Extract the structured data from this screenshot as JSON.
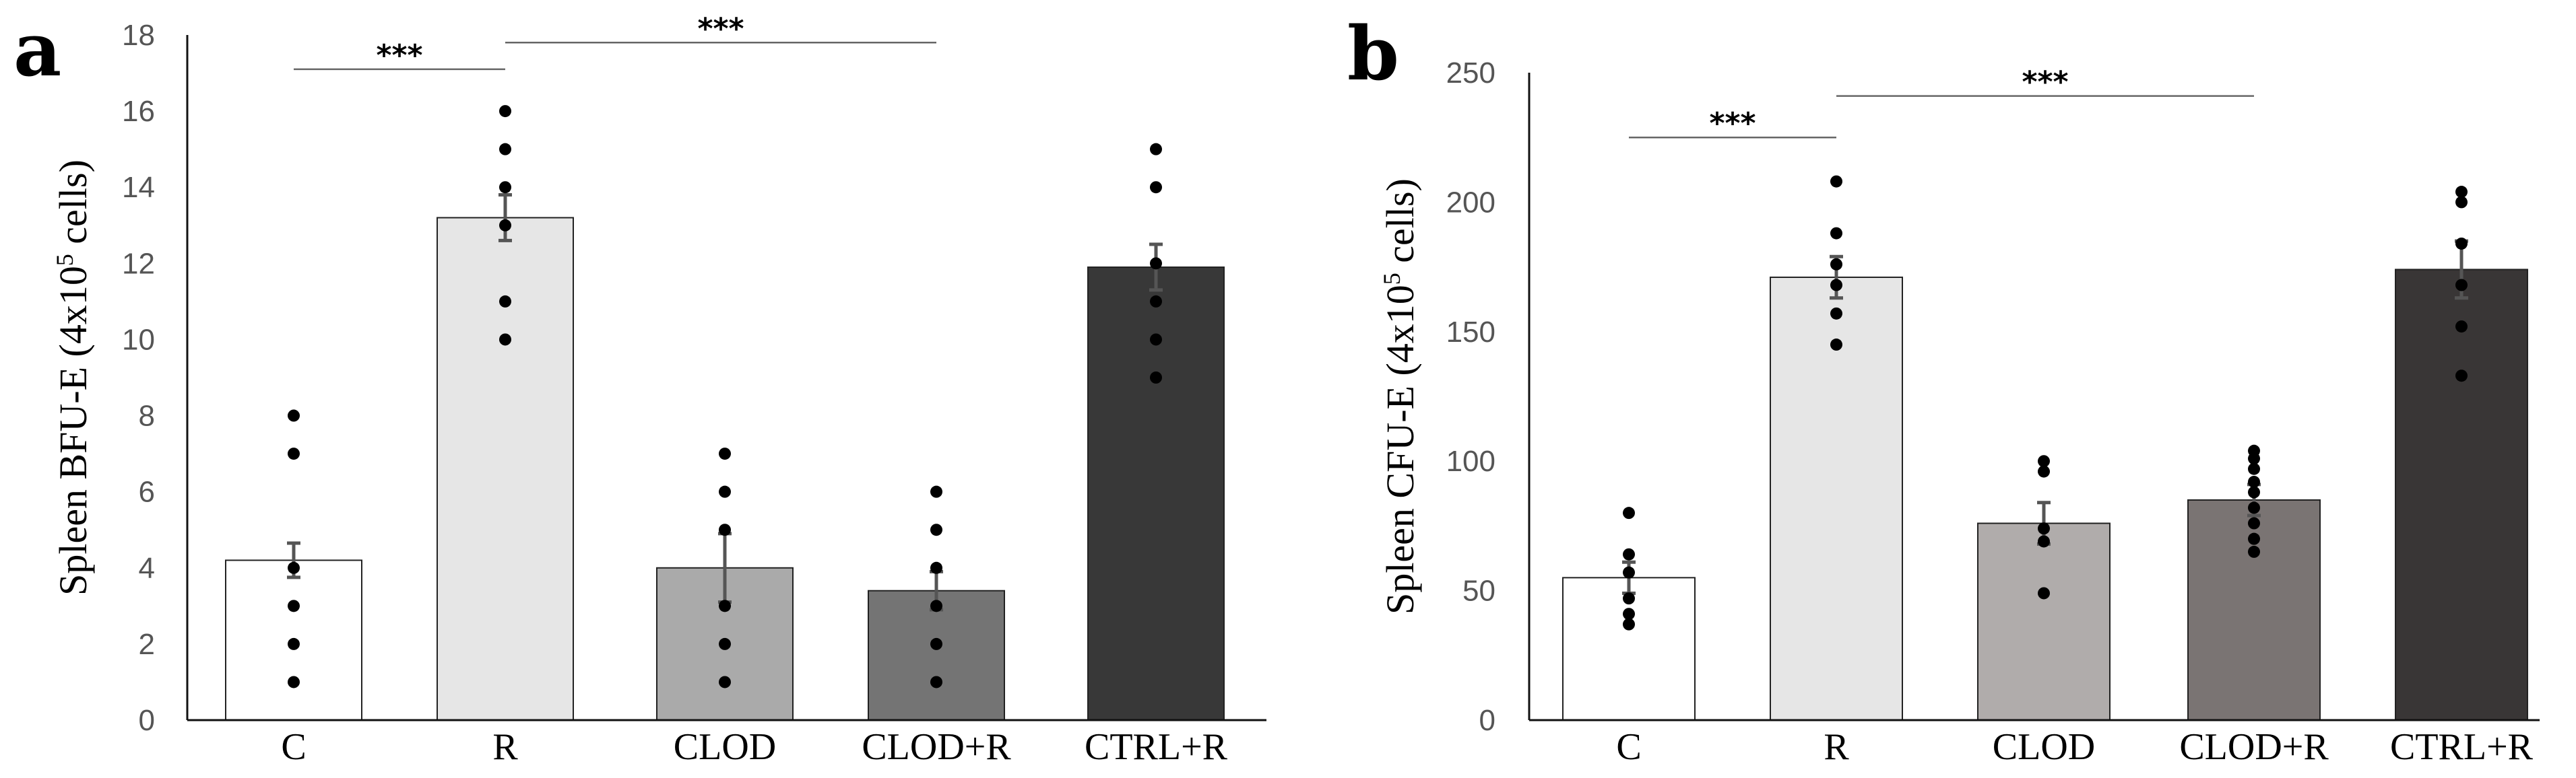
{
  "panels": [
    {
      "letter": "a"
    },
    {
      "letter": "b"
    }
  ],
  "chart_data": [
    {
      "type": "bar",
      "ylabel": "Spleen BFU-E (4x10",
      "ylabel_sup": "5",
      "ylabel_suffix": " cells)",
      "ylim": [
        0,
        18
      ],
      "yticks": [
        0,
        2,
        4,
        6,
        8,
        10,
        12,
        14,
        16,
        18
      ],
      "categories": [
        "C",
        "R",
        "CLOD",
        "CLOD+R",
        "CTRL+R"
      ],
      "values": [
        4.2,
        13.2,
        4.0,
        3.4,
        11.9
      ],
      "errors": [
        0.45,
        0.6,
        0.9,
        0.5,
        0.6
      ],
      "bar_colors": [
        "#ffffff",
        "#e6e6e6",
        "#aaaaaa",
        "#747474",
        "#383838"
      ],
      "points": [
        [
          1,
          2,
          3,
          4,
          7,
          8
        ],
        [
          10,
          11,
          13,
          14,
          15,
          16
        ],
        [
          1,
          2,
          3,
          5,
          6,
          7
        ],
        [
          1,
          2,
          3,
          4,
          5,
          6
        ],
        [
          9,
          10,
          11,
          12,
          14,
          15
        ]
      ],
      "significance": [
        {
          "from": 0,
          "to": 1,
          "y": 17.1,
          "label": "***"
        },
        {
          "from": 1,
          "to": 3,
          "y": 17.8,
          "label": "***"
        }
      ],
      "grid": false
    },
    {
      "type": "bar",
      "ylabel": "Spleen CFU-E (4x10",
      "ylabel_sup": "5",
      "ylabel_suffix": " cells)",
      "ylim": [
        0,
        250
      ],
      "yticks": [
        0,
        50,
        100,
        150,
        200,
        250
      ],
      "categories": [
        "C",
        "R",
        "CLOD",
        "CLOD+R",
        "CTRL+R"
      ],
      "values": [
        55,
        171,
        76,
        85,
        174
      ],
      "errors": [
        6,
        8,
        8,
        6,
        11
      ],
      "bar_colors": [
        "#ffffff",
        "#e6e6e6",
        "#b0acab",
        "#7a7473",
        "#393636"
      ],
      "points": [
        [
          37,
          41,
          47,
          57,
          64,
          80
        ],
        [
          145,
          157,
          168,
          176,
          188,
          208
        ],
        [
          49,
          69,
          74,
          96,
          100
        ],
        [
          65,
          70,
          76,
          82,
          88,
          92,
          97,
          101,
          104
        ],
        [
          133,
          152,
          168,
          184,
          200,
          204
        ]
      ],
      "significance": [
        {
          "from": 0,
          "to": 1,
          "y": 225,
          "label": "***"
        },
        {
          "from": 1,
          "to": 3,
          "y": 241,
          "label": "***"
        }
      ],
      "grid": false
    }
  ]
}
